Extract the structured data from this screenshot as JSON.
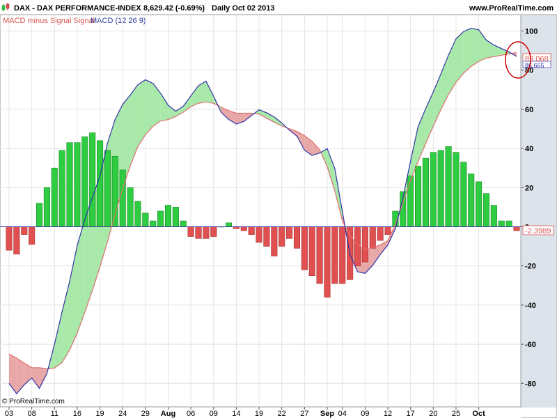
{
  "header": {
    "instrument": "DAX - DAX PERFORMANCE-INDEX",
    "price": "8,629.42 (-0.69%)",
    "period": "Daily  Oct 02 2013",
    "site": "www.ProRealTime.com"
  },
  "indicator": {
    "hist_label": "MACD minus Signal Signal",
    "macd_label": "MACD (12 26 9)"
  },
  "value_badges": {
    "signal": "89.068",
    "macd": "86.665",
    "histogram": "-2.3989"
  },
  "copyright": "© ProRealTime.com",
  "colors": {
    "positive_bar": "#2ecc40",
    "negative_bar": "#e05050",
    "macd_line": "#3333aa",
    "signal_line": "#e07070",
    "fill_up": "#a8e8a8",
    "fill_down": "#e8a8a8",
    "axis_panel": "#dde3ea"
  },
  "chart_data": {
    "type": "bar",
    "ylim": [
      -92,
      108
    ],
    "yticks": [
      -80,
      -60,
      -40,
      -20,
      0,
      20,
      40,
      60,
      80,
      100
    ],
    "x_tick_labels": [
      "03",
      "08",
      "11",
      "16",
      "19",
      "24",
      "29",
      "Aug",
      "06",
      "09",
      "14",
      "19",
      "22",
      "27",
      "Sep",
      "04",
      "09",
      "12",
      "17",
      "20",
      "25",
      "Oct"
    ],
    "x_tick_bar_index": [
      0,
      3,
      6,
      9,
      12,
      15,
      18,
      21,
      24,
      27,
      30,
      33,
      36,
      39,
      42,
      44,
      47,
      50,
      53,
      56,
      59,
      62
    ],
    "histogram": [
      -12,
      -14,
      -4,
      -9,
      12,
      20,
      30,
      39,
      43,
      43,
      46,
      48,
      44,
      39,
      36,
      29,
      20,
      13,
      7,
      3,
      8,
      11,
      10,
      3,
      -5,
      -6,
      -6,
      -5,
      0,
      2,
      -1,
      -2,
      -4,
      -8,
      -10,
      -15,
      -10,
      -6,
      -11,
      -22,
      -25,
      -29,
      -36,
      -29,
      -29,
      -27,
      -20,
      -18,
      -11,
      -7,
      -4,
      8,
      18,
      26,
      31,
      35,
      38,
      39,
      41,
      38,
      33,
      27,
      23,
      17,
      11,
      3,
      3,
      -2
    ],
    "series": [
      {
        "name": "MACD",
        "values": [
          -80,
          -87,
          -75,
          -83,
          -73,
          -50,
          -30,
          -6,
          10,
          23,
          45,
          60,
          66,
          73,
          76,
          70,
          62,
          58,
          65,
          72,
          75,
          60,
          55,
          52,
          55,
          60,
          58,
          55,
          50,
          46,
          36,
          37,
          40,
          26,
          -11,
          -23,
          -24,
          -16,
          -10,
          1,
          25,
          50,
          62,
          73,
          86,
          97,
          101,
          102,
          95,
          92,
          90,
          87
        ]
      },
      {
        "name": "Signal",
        "values": [
          -65,
          -68,
          -72,
          -72,
          -73,
          -69,
          -59,
          -44,
          -28,
          -10,
          10,
          28,
          42,
          50,
          54,
          55,
          58,
          62,
          64,
          63,
          60,
          58,
          58,
          58,
          55,
          52,
          50,
          48,
          44,
          38,
          22,
          0,
          -8,
          -12,
          -10,
          -8,
          4,
          21,
          35,
          48,
          60,
          71,
          78,
          83,
          86,
          87,
          88,
          89
        ]
      }
    ]
  }
}
